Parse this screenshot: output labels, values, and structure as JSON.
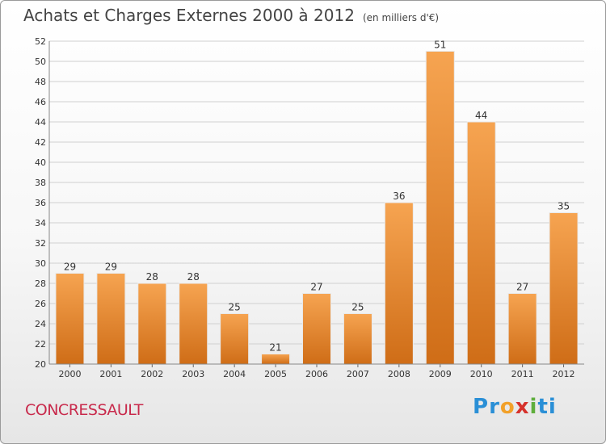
{
  "title": "Achats et Charges Externes 2000 à 2012",
  "unit": "(en milliers d'€)",
  "commune": "CONCRESSAULT",
  "logo": "Proxiti",
  "colors": {
    "bar_light": "#f6a451",
    "bar_dark": "#cf6d17",
    "grid": "#d0d0d0",
    "axis_text": "#333333",
    "commune_text": "#c8294b"
  },
  "chart_data": {
    "type": "bar",
    "title": "Achats et Charges Externes 2000 à 2012",
    "xlabel": "",
    "ylabel": "",
    "categories": [
      "2000",
      "2001",
      "2002",
      "2003",
      "2004",
      "2005",
      "2006",
      "2007",
      "2008",
      "2009",
      "2010",
      "2011",
      "2012"
    ],
    "values": [
      29,
      29,
      28,
      28,
      25,
      21,
      27,
      25,
      36,
      51,
      44,
      27,
      35
    ],
    "ylim": [
      20,
      52
    ],
    "yticks": [
      20,
      22,
      24,
      26,
      28,
      30,
      32,
      34,
      36,
      38,
      40,
      42,
      44,
      46,
      48,
      50,
      52
    ],
    "grid": true
  }
}
